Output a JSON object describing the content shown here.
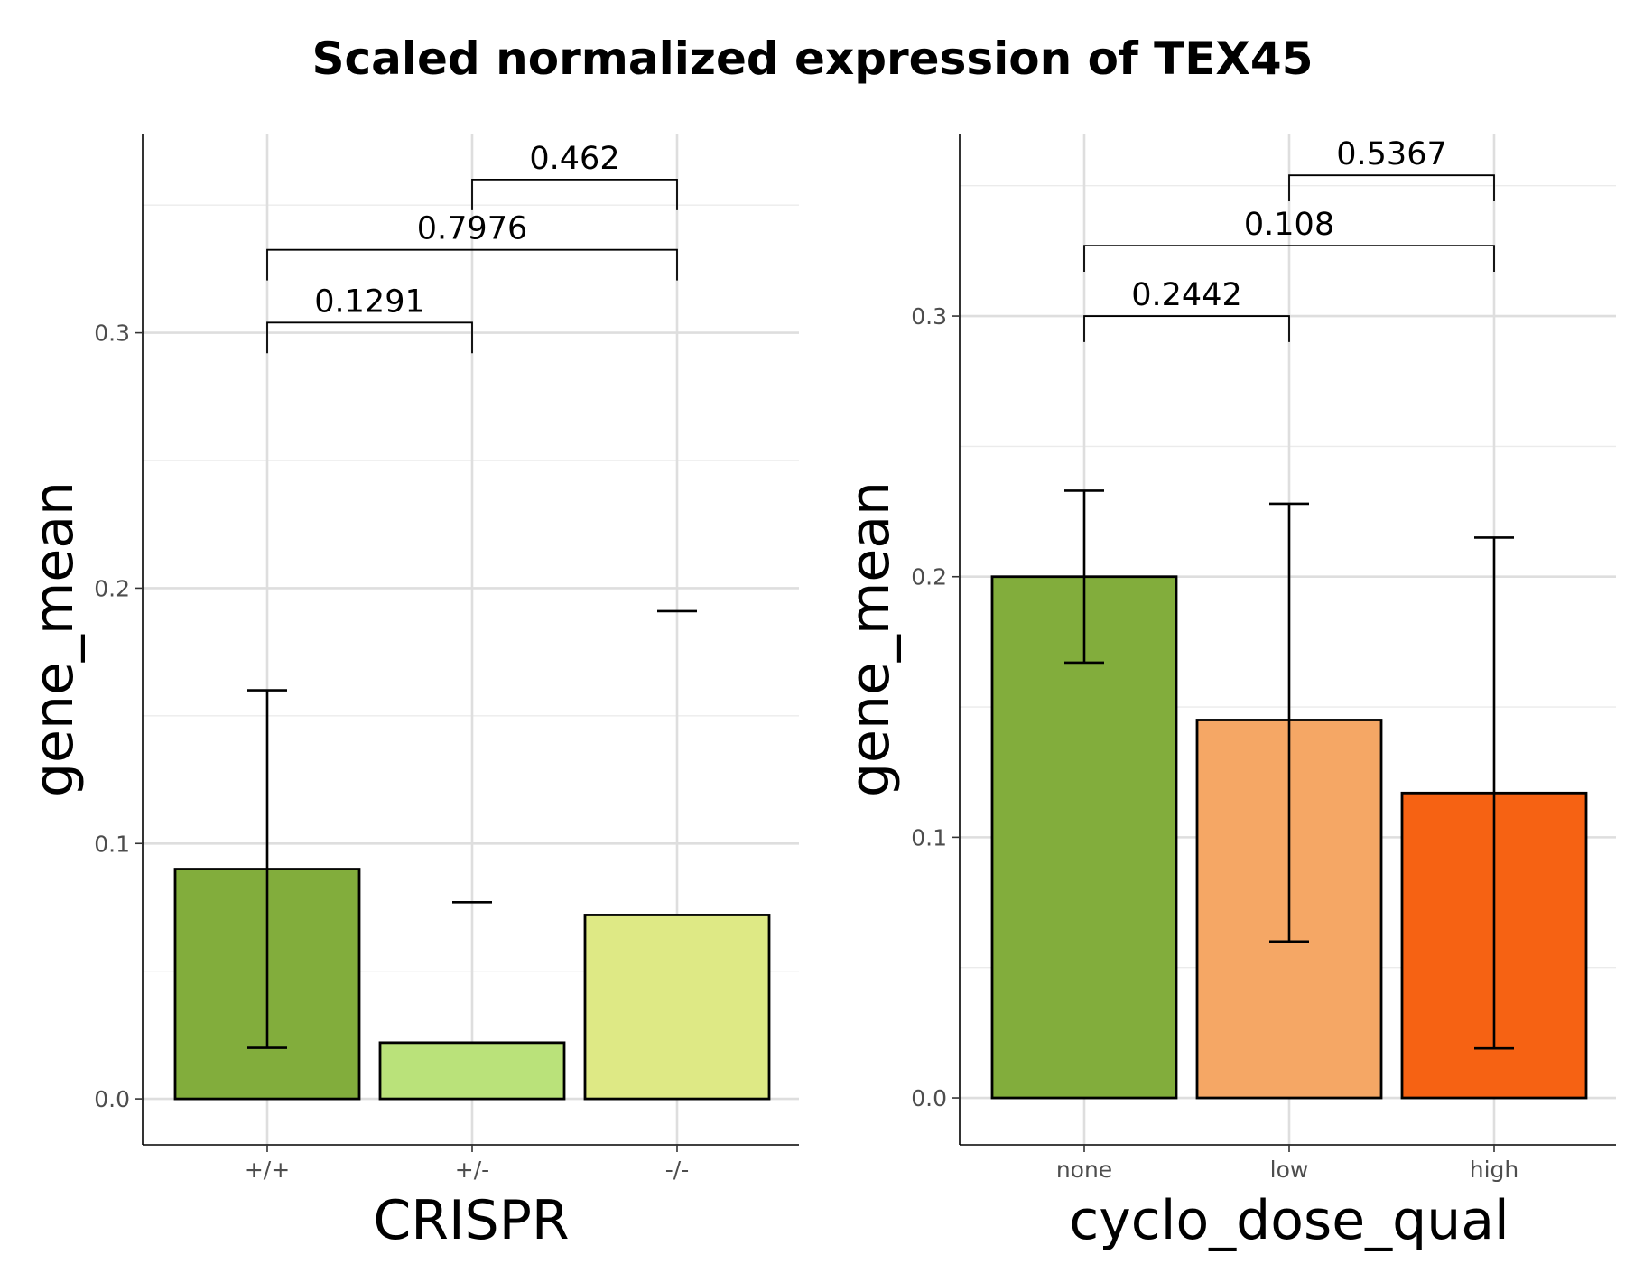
{
  "figure": {
    "title": "Scaled normalized expression of TEX45"
  },
  "chart_data": [
    {
      "type": "bar",
      "title": "Scaled normalized expression of TEX45",
      "xlabel": "CRISPR",
      "ylabel": "gene_mean",
      "categories": [
        "+/+",
        "+/-",
        "-/-"
      ],
      "values": [
        0.09,
        0.022,
        0.072
      ],
      "errors": [
        [
          0.02,
          0.16
        ],
        [
          null,
          0.077
        ],
        [
          null,
          0.191
        ]
      ],
      "colors": [
        "#82ad3c",
        "#bae27a",
        "#dee985"
      ],
      "ylim": [
        -0.018,
        0.378
      ],
      "yticks": [
        0.0,
        0.1,
        0.2,
        0.3
      ],
      "ytick_labels": [
        "0.0",
        "0.1",
        "0.2",
        "0.3"
      ],
      "grid": true,
      "significance": [
        {
          "from": 0,
          "to": 1,
          "label": "0.1291",
          "y": 0.304,
          "drop": 0.012
        },
        {
          "from": 0,
          "to": 2,
          "label": "0.7976",
          "y": 0.3325,
          "drop": 0.012
        },
        {
          "from": 1,
          "to": 2,
          "label": "0.462",
          "y": 0.36,
          "drop": 0.012
        }
      ]
    },
    {
      "type": "bar",
      "title": "Scaled normalized expression of TEX45",
      "xlabel": "cyclo_dose_qual",
      "ylabel": "gene_mean",
      "categories": [
        "none",
        "low",
        "high"
      ],
      "values": [
        0.2,
        0.145,
        0.117
      ],
      "errors": [
        [
          0.167,
          0.233
        ],
        [
          0.06,
          0.228
        ],
        [
          0.019,
          0.215
        ]
      ],
      "colors": [
        "#82ad3c",
        "#f5a765",
        "#f66213"
      ],
      "ylim": [
        -0.018,
        0.37
      ],
      "yticks": [
        0.0,
        0.1,
        0.2,
        0.3
      ],
      "ytick_labels": [
        "0.0",
        "0.1",
        "0.2",
        "0.3"
      ],
      "grid": true,
      "significance": [
        {
          "from": 0,
          "to": 1,
          "label": "0.2442",
          "y": 0.3,
          "drop": 0.01
        },
        {
          "from": 0,
          "to": 2,
          "label": "0.108",
          "y": 0.327,
          "drop": 0.01
        },
        {
          "from": 1,
          "to": 2,
          "label": "0.5367",
          "y": 0.354,
          "drop": 0.01
        }
      ]
    }
  ]
}
